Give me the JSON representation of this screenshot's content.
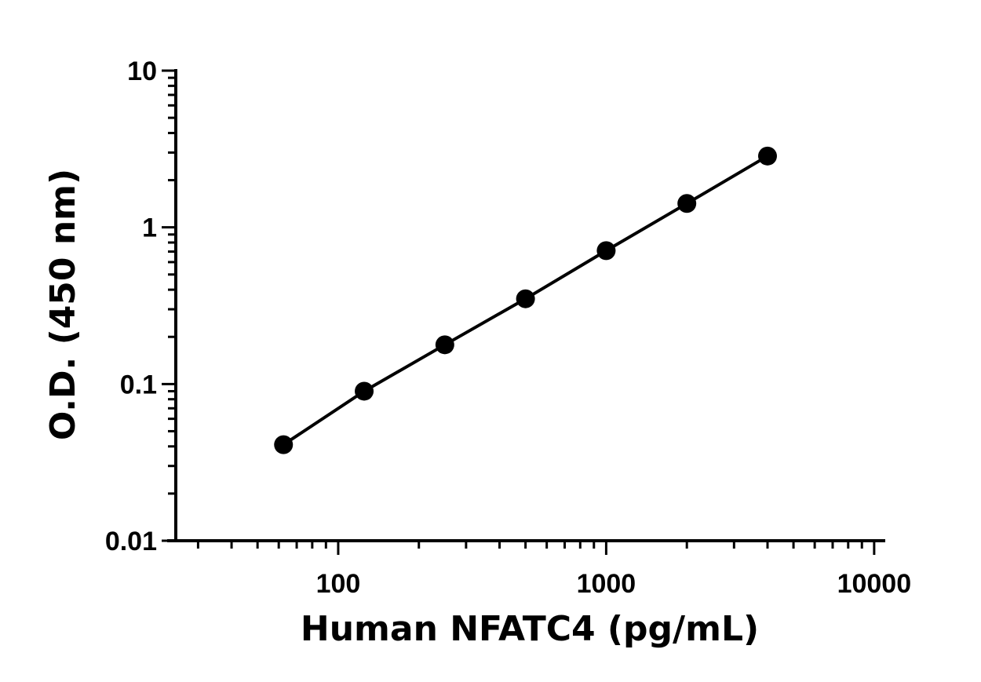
{
  "chart_data": {
    "type": "scatter",
    "title": "",
    "xlabel": "Human NFATC4 (pg/mL)",
    "ylabel": "O.D. (450 nm)",
    "xscale": "log",
    "yscale": "log",
    "xlim": [
      23,
      11000
    ],
    "ylim": [
      0.01,
      10
    ],
    "xticks": [
      {
        "value": 100,
        "label": "100"
      },
      {
        "value": 1000,
        "label": "1000"
      },
      {
        "value": 10000,
        "label": "10000"
      }
    ],
    "yticks": [
      {
        "value": 0.01,
        "label": "0.01"
      },
      {
        "value": 0.1,
        "label": "0.1"
      },
      {
        "value": 1,
        "label": "1"
      },
      {
        "value": 10,
        "label": "10"
      }
    ],
    "grid": false,
    "legend": "none",
    "fit_line": true,
    "series": [
      {
        "color": "#000000",
        "x": [
          62.5,
          125,
          250,
          500,
          1000,
          2000,
          4000
        ],
        "y": [
          0.041,
          0.09,
          0.178,
          0.35,
          0.71,
          1.42,
          2.85
        ]
      }
    ]
  }
}
